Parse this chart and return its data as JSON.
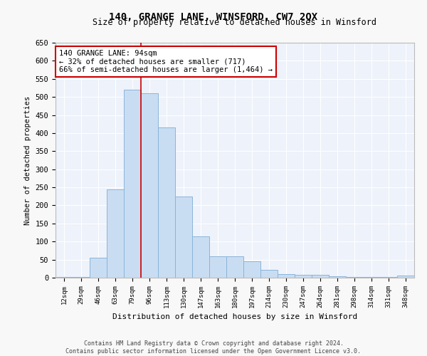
{
  "title": "140, GRANGE LANE, WINSFORD, CW7 2QX",
  "subtitle": "Size of property relative to detached houses in Winsford",
  "xlabel": "Distribution of detached houses by size in Winsford",
  "ylabel": "Number of detached properties",
  "categories": [
    "12sqm",
    "29sqm",
    "46sqm",
    "63sqm",
    "79sqm",
    "96sqm",
    "113sqm",
    "130sqm",
    "147sqm",
    "163sqm",
    "180sqm",
    "197sqm",
    "214sqm",
    "230sqm",
    "247sqm",
    "264sqm",
    "281sqm",
    "298sqm",
    "314sqm",
    "331sqm",
    "348sqm"
  ],
  "values": [
    2,
    2,
    55,
    245,
    520,
    510,
    415,
    225,
    115,
    60,
    60,
    45,
    22,
    10,
    8,
    7,
    3,
    2,
    1,
    1,
    5
  ],
  "bar_color": "#c9ddf2",
  "bar_edge_color": "#8ab4d9",
  "property_line_x": 4.5,
  "property_line_label": "140 GRANGE LANE: 94sqm",
  "annotation_line1": "← 32% of detached houses are smaller (717)",
  "annotation_line2": "66% of semi-detached houses are larger (1,464) →",
  "annotation_box_color": "#ffffff",
  "annotation_box_edge_color": "#cc0000",
  "ylim": [
    0,
    650
  ],
  "yticks": [
    0,
    50,
    100,
    150,
    200,
    250,
    300,
    350,
    400,
    450,
    500,
    550,
    600,
    650
  ],
  "background_color": "#eef2fa",
  "grid_color": "#ffffff",
  "fig_background_color": "#f8f8f8",
  "footer_line1": "Contains HM Land Registry data © Crown copyright and database right 2024.",
  "footer_line2": "Contains public sector information licensed under the Open Government Licence v3.0."
}
